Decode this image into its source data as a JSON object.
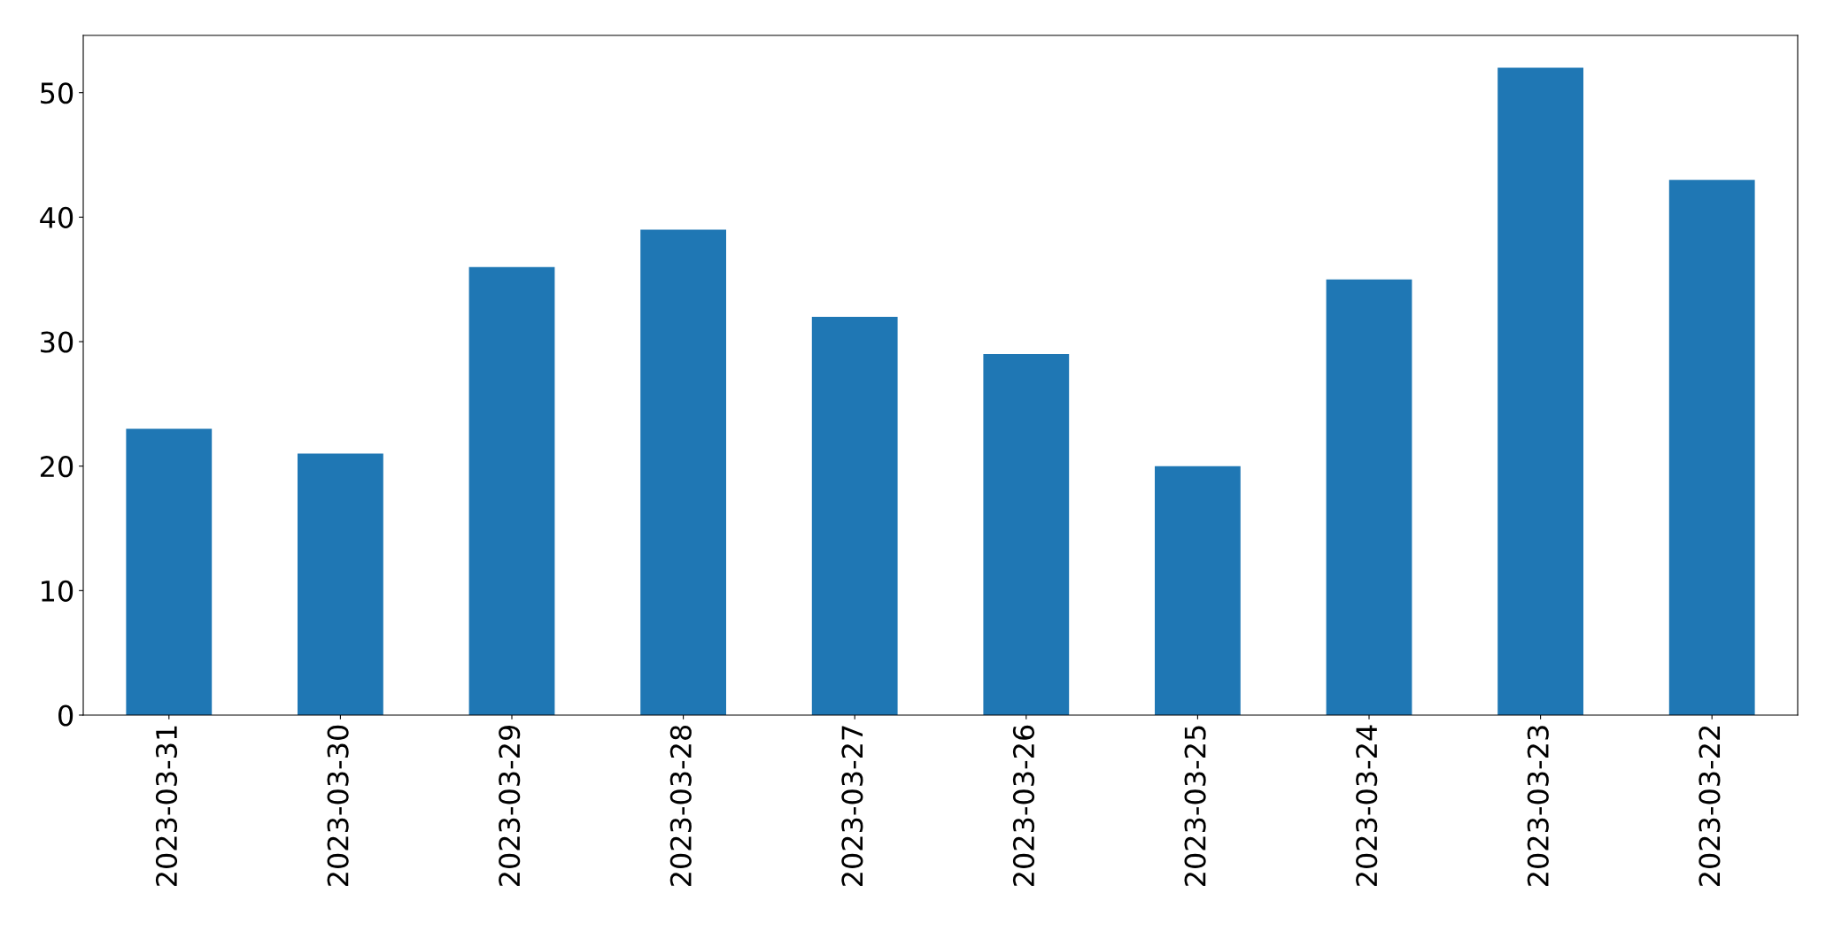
{
  "chart_data": {
    "type": "bar",
    "categories": [
      "2023-03-31",
      "2023-03-30",
      "2023-03-29",
      "2023-03-28",
      "2023-03-27",
      "2023-03-26",
      "2023-03-25",
      "2023-03-24",
      "2023-03-23",
      "2023-03-22"
    ],
    "values": [
      23,
      21,
      36,
      39,
      32,
      29,
      20,
      35,
      52,
      43
    ],
    "color": "#1f77b4",
    "ylim": [
      0,
      54.6
    ],
    "yticks": [
      0,
      10,
      20,
      30,
      40,
      50
    ],
    "grid": false
  }
}
